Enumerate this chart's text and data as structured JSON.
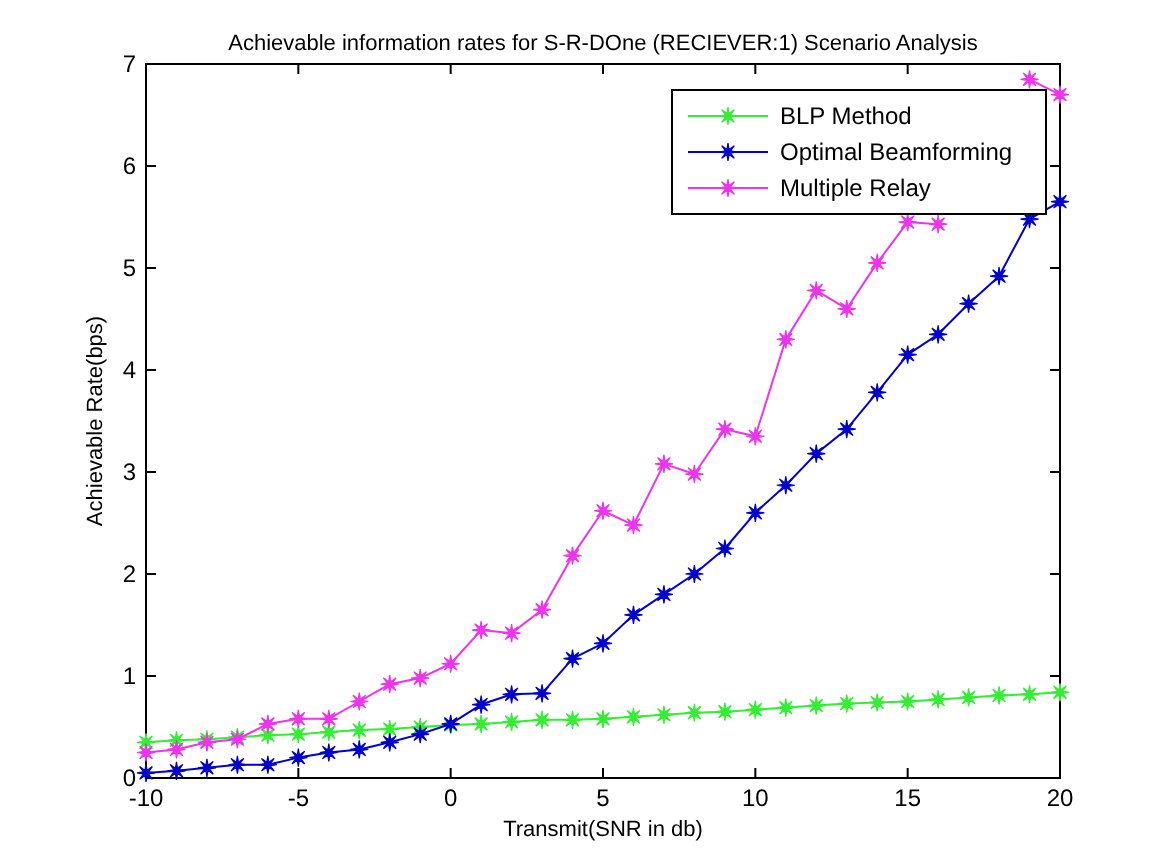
{
  "chart_data": {
    "type": "line",
    "title": "Achievable information rates for S-R-DOne (RECIEVER:1) Scenario Analysis",
    "xlabel": "Transmit(SNR in db)",
    "ylabel": "Achievable Rate(bps)",
    "x": [
      -10,
      -9,
      -8,
      -7,
      -6,
      -5,
      -4,
      -3,
      -2,
      -1,
      0,
      1,
      2,
      3,
      4,
      5,
      6,
      7,
      8,
      9,
      10,
      11,
      12,
      13,
      14,
      15,
      16,
      17,
      18,
      19,
      20
    ],
    "series": [
      {
        "name": "BLP Method",
        "color": "#33ee33",
        "values": [
          0.35,
          0.37,
          0.38,
          0.4,
          0.42,
          0.43,
          0.45,
          0.47,
          0.48,
          0.5,
          0.52,
          0.53,
          0.55,
          0.57,
          0.57,
          0.58,
          0.6,
          0.62,
          0.64,
          0.65,
          0.67,
          0.69,
          0.71,
          0.73,
          0.74,
          0.75,
          0.77,
          0.79,
          0.81,
          0.82,
          0.84
        ]
      },
      {
        "name": "Optimal Beamforming",
        "color": "#0000cc",
        "values": [
          0.05,
          0.07,
          0.1,
          0.13,
          0.13,
          0.2,
          0.25,
          0.28,
          0.35,
          0.43,
          0.53,
          0.72,
          0.82,
          0.83,
          1.17,
          1.32,
          1.6,
          1.8,
          2.0,
          2.25,
          2.6,
          2.87,
          3.18,
          3.42,
          3.78,
          4.15,
          4.35,
          4.65,
          4.92,
          5.48,
          5.65
        ]
      },
      {
        "name": "Multiple Relay",
        "color": "#ee33ee",
        "values": [
          0.25,
          0.28,
          0.35,
          0.38,
          0.53,
          0.58,
          0.58,
          0.75,
          0.92,
          0.98,
          1.12,
          1.45,
          1.42,
          1.65,
          2.18,
          2.62,
          2.48,
          3.08,
          2.98,
          3.42,
          3.35,
          4.3,
          4.78,
          4.6,
          5.05,
          5.45,
          5.43,
          null,
          null,
          6.85,
          6.7
        ]
      }
    ],
    "xlim": [
      -10,
      20
    ],
    "xticks": [
      -10,
      -5,
      0,
      5,
      10,
      15,
      20
    ],
    "ylim": [
      0,
      7
    ],
    "yticks": [
      0,
      1,
      2,
      3,
      4,
      5,
      6,
      7
    ],
    "grid": false,
    "legend": "top right",
    "marker": "star",
    "line_style": "solid"
  }
}
